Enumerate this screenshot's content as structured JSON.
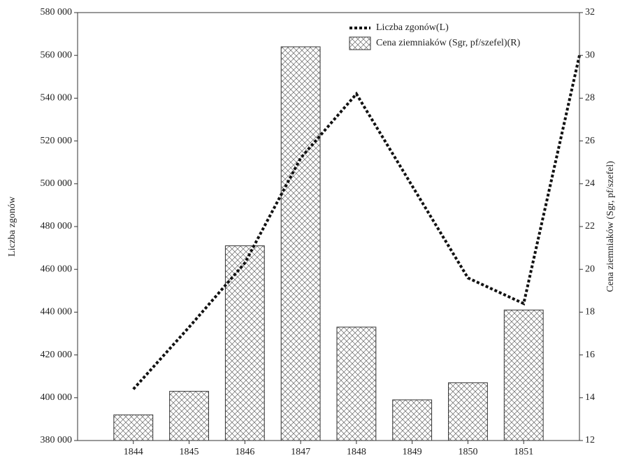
{
  "chart_data": {
    "type": "bar-line",
    "y_label": "Liczba zgonów",
    "y2_label": "Cena ziemniaków (Sgr, pf/szefel)",
    "xlim": [
      1843,
      1852
    ],
    "xticks": [
      1844,
      1845,
      1846,
      1847,
      1848,
      1849,
      1850,
      1851
    ],
    "ylim": [
      380000,
      580000
    ],
    "yticks": [
      {
        "value": 380000,
        "label": "380 000"
      },
      {
        "value": 400000,
        "label": "400 000"
      },
      {
        "value": 420000,
        "label": "420 000"
      },
      {
        "value": 440000,
        "label": "440 000"
      },
      {
        "value": 460000,
        "label": "460 000"
      },
      {
        "value": 480000,
        "label": "480 000"
      },
      {
        "value": 500000,
        "label": "500 000"
      },
      {
        "value": 520000,
        "label": "520 000"
      },
      {
        "value": 540000,
        "label": "540 000"
      },
      {
        "value": 560000,
        "label": "560 000"
      },
      {
        "value": 580000,
        "label": "580 000"
      }
    ],
    "y2lim": [
      12,
      32
    ],
    "y2ticks": [
      12,
      14,
      16,
      18,
      20,
      22,
      24,
      26,
      28,
      30,
      32
    ],
    "legend": "upper right",
    "series": [
      {
        "name": "Liczba zgonów(L)",
        "type": "line",
        "style": "dotted",
        "color": "#111111",
        "x": [
          1844,
          1845,
          1846,
          1847,
          1848,
          1849,
          1850,
          1851,
          1852
        ],
        "values": [
          404000,
          433000,
          463000,
          512000,
          542000,
          499000,
          456000,
          444000,
          560000
        ]
      },
      {
        "name": "Cena ziemniaków (Sgr, pf/szefel)(R)",
        "type": "bar",
        "axis": "y2",
        "hatch": "cross",
        "color": "#666666",
        "x": [
          1844,
          1845,
          1846,
          1847,
          1848,
          1849,
          1850,
          1851
        ],
        "values": [
          13.2,
          14.3,
          21.1,
          30.4,
          17.3,
          13.9,
          14.7,
          18.1
        ]
      }
    ]
  }
}
